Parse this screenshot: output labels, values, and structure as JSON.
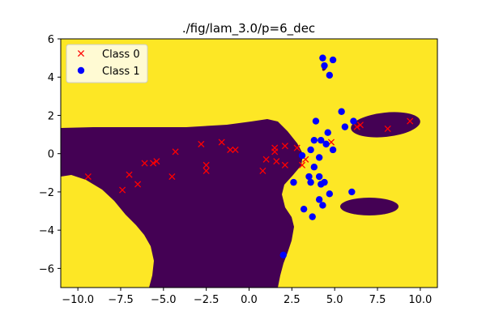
{
  "chart_data": {
    "type": "scatter",
    "title": "./fig/lam_3.0/p=6_dec",
    "xlabel": "",
    "ylabel": "",
    "xlim": [
      -11,
      11
    ],
    "ylim": [
      -7,
      6
    ],
    "x_ticks": [
      -10.0,
      -7.5,
      -5.0,
      -2.5,
      0.0,
      2.5,
      5.0,
      7.5,
      10.0
    ],
    "x_tick_labels": [
      "−10.0",
      "−7.5",
      "−5.0",
      "−2.5",
      "0.0",
      "2.5",
      "5.0",
      "7.5",
      "10.0"
    ],
    "y_ticks": [
      -6,
      -4,
      -2,
      0,
      2,
      4,
      6
    ],
    "y_tick_labels": [
      "−6",
      "−4",
      "−2",
      "0",
      "2",
      "4",
      "6"
    ],
    "grid": false,
    "legend_position": "top-left",
    "background": {
      "description": "decision region",
      "class0_region_color": "#440154",
      "class1_region_color": "#fde725"
    },
    "colors": {
      "class0_marker": "#ff0000",
      "class1_marker": "#0000ff"
    },
    "series": [
      {
        "name": "Class 0",
        "marker": "x",
        "points": [
          [
            -9.4,
            -1.2
          ],
          [
            -7.4,
            -1.9
          ],
          [
            -7.0,
            -1.1
          ],
          [
            -6.5,
            -1.6
          ],
          [
            -6.1,
            -0.5
          ],
          [
            -5.6,
            -0.5
          ],
          [
            -5.4,
            -0.4
          ],
          [
            -4.5,
            -1.2
          ],
          [
            -4.3,
            0.1
          ],
          [
            -2.8,
            0.5
          ],
          [
            -2.5,
            -0.6
          ],
          [
            -2.5,
            -0.9
          ],
          [
            -1.6,
            0.6
          ],
          [
            -1.1,
            0.2
          ],
          [
            -0.8,
            0.2
          ],
          [
            0.8,
            -0.9
          ],
          [
            1.0,
            -0.3
          ],
          [
            1.5,
            0.1
          ],
          [
            1.5,
            0.3
          ],
          [
            1.6,
            -0.4
          ],
          [
            2.1,
            0.4
          ],
          [
            2.1,
            -0.6
          ],
          [
            2.8,
            0.3
          ],
          [
            3.1,
            -0.6
          ],
          [
            3.3,
            -0.3
          ],
          [
            4.8,
            0.6
          ],
          [
            6.3,
            1.4
          ],
          [
            6.5,
            1.5
          ],
          [
            8.1,
            1.3
          ],
          [
            9.4,
            1.7
          ]
        ]
      },
      {
        "name": "Class 1",
        "marker": "o",
        "points": [
          [
            4.3,
            5.0
          ],
          [
            4.9,
            4.9
          ],
          [
            4.4,
            4.6
          ],
          [
            4.7,
            4.1
          ],
          [
            5.4,
            2.2
          ],
          [
            5.6,
            1.4
          ],
          [
            6.1,
            1.7
          ],
          [
            3.9,
            1.7
          ],
          [
            4.6,
            1.1
          ],
          [
            3.8,
            0.7
          ],
          [
            4.2,
            0.7
          ],
          [
            4.5,
            0.5
          ],
          [
            4.9,
            0.2
          ],
          [
            3.6,
            0.2
          ],
          [
            3.1,
            -0.1
          ],
          [
            4.1,
            -0.2
          ],
          [
            3.8,
            -0.7
          ],
          [
            2.6,
            -1.5
          ],
          [
            3.5,
            -1.2
          ],
          [
            3.6,
            -1.5
          ],
          [
            4.1,
            -1.2
          ],
          [
            4.4,
            -1.5
          ],
          [
            4.2,
            -1.6
          ],
          [
            6.0,
            -2.0
          ],
          [
            4.7,
            -2.1
          ],
          [
            4.1,
            -2.4
          ],
          [
            4.3,
            -2.7
          ],
          [
            3.2,
            -2.9
          ],
          [
            3.7,
            -3.3
          ],
          [
            2.0,
            -5.3
          ]
        ]
      }
    ]
  }
}
